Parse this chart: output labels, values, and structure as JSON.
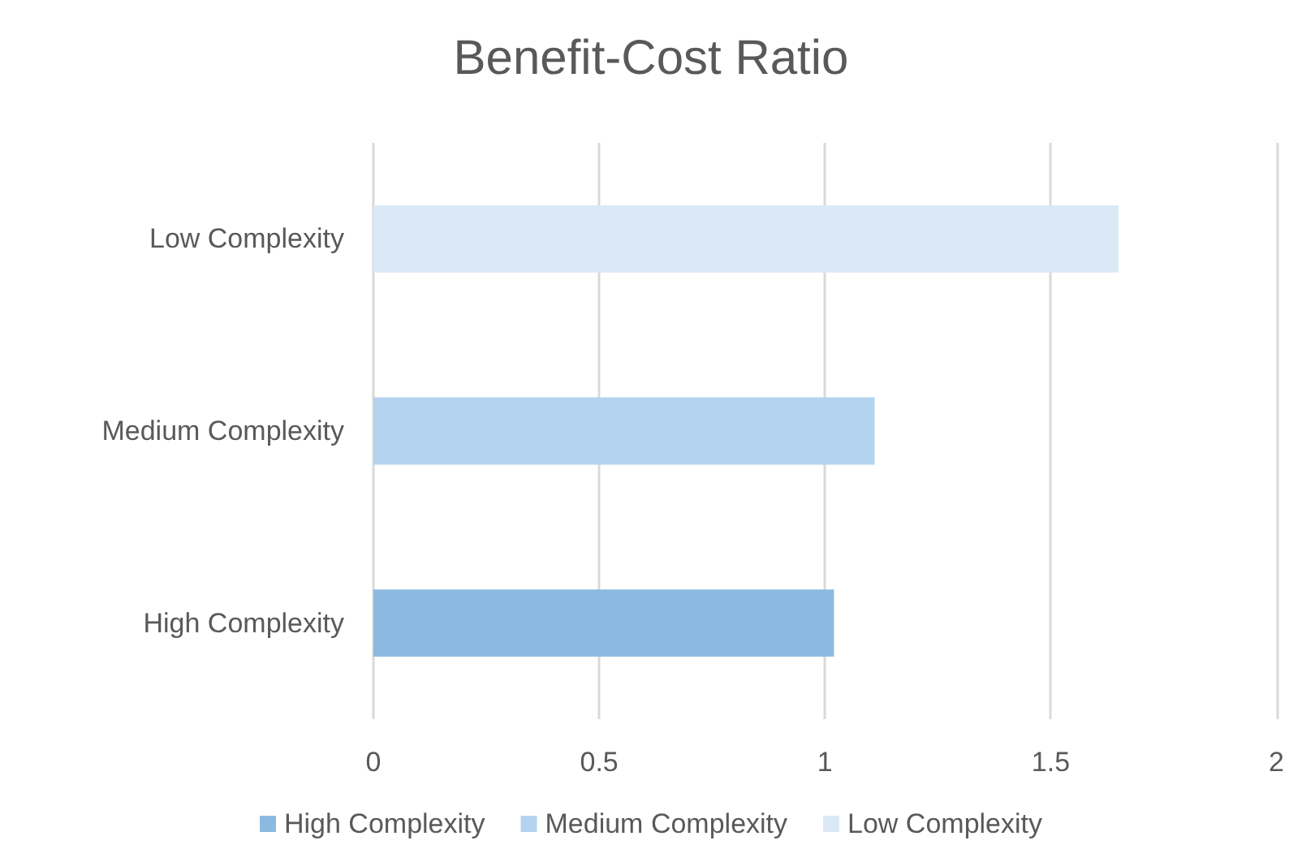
{
  "chart_data": {
    "type": "bar",
    "orientation": "horizontal",
    "stacked": true,
    "title": "Benefit-Cost Ratio",
    "categories": [
      "Low Complexity",
      "Medium Complexity",
      "High Complexity"
    ],
    "series": [
      {
        "name": "High Complexity",
        "color": "#8cb9e0",
        "values": [
          null,
          null,
          1.02
        ]
      },
      {
        "name": "Medium Complexity",
        "color": "#b4d3ef",
        "values": [
          null,
          1.11,
          null
        ]
      },
      {
        "name": "Low Complexity",
        "color": "#dbe9f7",
        "values": [
          1.65,
          null,
          null
        ]
      }
    ],
    "xlim": [
      0,
      2
    ],
    "xticks": [
      0,
      0.5,
      1,
      1.5,
      2
    ],
    "grid": "x",
    "legend": "bottom"
  }
}
